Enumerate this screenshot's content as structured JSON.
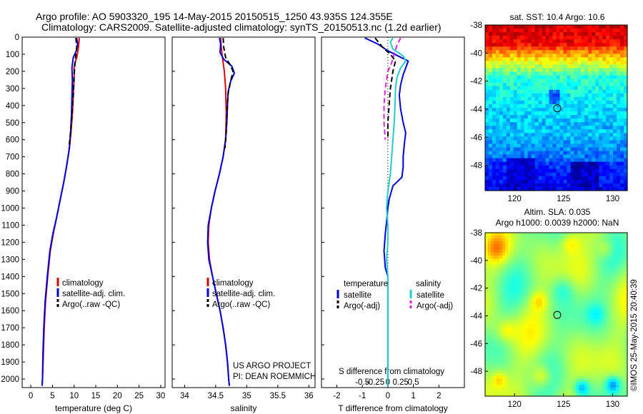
{
  "title_line1": "Argo profile: AO 5903320_195 14-May-2015 20150515_1250 43.935S 124.355E",
  "title_line2": "Climatology: CARS2009. Satellite-adjusted climatology: synTS_20150513.nc (1.2d earlier)",
  "project_note": [
    "US ARGO PROJECT",
    "PI: DEAN ROEMMICH"
  ],
  "watermark": "©IMOS 25-May-2015 20:40:39",
  "colors": {
    "climatology": "#dd0000",
    "satellite": "#0000dd",
    "argo": "#000000",
    "sal_satellite": "#22cccc",
    "sal_argo": "#dd22dd"
  },
  "chart_data": [
    {
      "type": "line",
      "id": "temperature",
      "xlabel": "temperature (deg C)",
      "ylabel": "",
      "xlim": [
        -2,
        31
      ],
      "ylim": [
        2050,
        0
      ],
      "xticks": [
        "0",
        "5",
        "10",
        "15",
        "20",
        "25",
        "30"
      ],
      "yticks": [
        "0",
        "100",
        "200",
        "300",
        "400",
        "500",
        "600",
        "700",
        "800",
        "900",
        "1000",
        "1100",
        "1200",
        "1300",
        "1400",
        "1500",
        "1600",
        "1700",
        "1800",
        "1900",
        "2000"
      ],
      "legend": [
        "climatology",
        "satellite-adj. clim.",
        "Argo(..raw -QC)"
      ],
      "series": [
        {
          "name": "climatology",
          "color": "#dd0000",
          "points": [
            [
              11.2,
              5
            ],
            [
              11.0,
              60
            ],
            [
              10.6,
              120
            ],
            [
              10.2,
              150
            ],
            [
              10.0,
              180
            ],
            [
              10.0,
              250
            ],
            [
              9.8,
              350
            ],
            [
              9.6,
              450
            ],
            [
              9.3,
              550
            ],
            [
              8.9,
              650
            ],
            [
              8.3,
              750
            ],
            [
              7.6,
              850
            ],
            [
              6.8,
              950
            ],
            [
              6.0,
              1050
            ],
            [
              5.2,
              1150
            ],
            [
              4.5,
              1250
            ],
            [
              3.9,
              1400
            ],
            [
              3.4,
              1550
            ],
            [
              3.1,
              1700
            ],
            [
              2.9,
              1850
            ],
            [
              2.7,
              2000
            ],
            [
              2.6,
              2040
            ]
          ]
        },
        {
          "name": "satellite-adj. clim.",
          "color": "#0000dd",
          "points": [
            [
              10.6,
              5
            ],
            [
              10.8,
              40
            ],
            [
              10.5,
              80
            ],
            [
              9.8,
              120
            ],
            [
              9.5,
              180
            ],
            [
              9.6,
              250
            ],
            [
              9.5,
              350
            ],
            [
              9.4,
              450
            ],
            [
              9.2,
              550
            ],
            [
              8.9,
              650
            ],
            [
              8.3,
              750
            ],
            [
              7.6,
              850
            ],
            [
              6.8,
              950
            ],
            [
              6.0,
              1050
            ],
            [
              5.1,
              1150
            ],
            [
              4.4,
              1250
            ],
            [
              3.8,
              1400
            ],
            [
              3.3,
              1550
            ],
            [
              3.0,
              1700
            ],
            [
              2.8,
              1850
            ],
            [
              2.7,
              2000
            ],
            [
              2.6,
              2040
            ]
          ]
        },
        {
          "name": "Argo(..raw -QC)",
          "color": "#000000",
          "points": [
            [
              10.4,
              5
            ],
            [
              10.6,
              60
            ],
            [
              10.4,
              100
            ],
            [
              10.2,
              160
            ],
            [
              10.0,
              220
            ],
            [
              9.8,
              350
            ],
            [
              9.5,
              450
            ],
            [
              9.2,
              550
            ],
            [
              8.8,
              650
            ]
          ]
        }
      ]
    },
    {
      "type": "line",
      "id": "salinity",
      "xlabel": "salinity",
      "ylabel": "",
      "xlim": [
        33.8,
        36.1
      ],
      "ylim": [
        2050,
        0
      ],
      "xticks": [
        "34",
        "34.5",
        "35",
        "35.5",
        "36"
      ],
      "legend": [
        "climatology",
        "satellite-adj. clim.",
        "Argo(..raw -QC)"
      ],
      "series": [
        {
          "name": "climatology",
          "color": "#dd0000",
          "points": [
            [
              34.58,
              5
            ],
            [
              34.59,
              60
            ],
            [
              34.61,
              120
            ],
            [
              34.64,
              200
            ],
            [
              34.66,
              300
            ],
            [
              34.67,
              450
            ],
            [
              34.66,
              600
            ],
            [
              34.62,
              700
            ],
            [
              34.56,
              800
            ],
            [
              34.49,
              900
            ],
            [
              34.43,
              1000
            ],
            [
              34.39,
              1100
            ],
            [
              34.38,
              1200
            ],
            [
              34.4,
              1300
            ],
            [
              34.45,
              1400
            ],
            [
              34.51,
              1500
            ],
            [
              34.57,
              1600
            ],
            [
              34.62,
              1700
            ],
            [
              34.66,
              1800
            ],
            [
              34.69,
              1900
            ],
            [
              34.71,
              2000
            ],
            [
              34.72,
              2040
            ]
          ]
        },
        {
          "name": "satellite-adj. clim.",
          "color": "#0000dd",
          "points": [
            [
              34.56,
              5
            ],
            [
              34.58,
              40
            ],
            [
              34.57,
              90
            ],
            [
              34.63,
              130
            ],
            [
              34.76,
              170
            ],
            [
              34.8,
              210
            ],
            [
              34.74,
              260
            ],
            [
              34.7,
              320
            ],
            [
              34.69,
              400
            ],
            [
              34.68,
              500
            ],
            [
              34.66,
              600
            ],
            [
              34.62,
              700
            ],
            [
              34.56,
              800
            ],
            [
              34.49,
              900
            ],
            [
              34.43,
              1000
            ],
            [
              34.38,
              1100
            ],
            [
              34.37,
              1200
            ],
            [
              34.39,
              1300
            ],
            [
              34.45,
              1400
            ],
            [
              34.51,
              1500
            ],
            [
              34.57,
              1600
            ],
            [
              34.62,
              1700
            ],
            [
              34.66,
              1800
            ],
            [
              34.69,
              1900
            ],
            [
              34.71,
              2000
            ],
            [
              34.72,
              2040
            ]
          ]
        },
        {
          "name": "Argo(..raw -QC)",
          "color": "#000000",
          "points": [
            [
              34.62,
              5
            ],
            [
              34.63,
              60
            ],
            [
              34.66,
              120
            ],
            [
              34.73,
              160
            ],
            [
              34.78,
              200
            ],
            [
              34.74,
              260
            ],
            [
              34.7,
              330
            ],
            [
              34.68,
              450
            ],
            [
              34.67,
              550
            ],
            [
              34.65,
              650
            ]
          ]
        }
      ]
    },
    {
      "type": "line",
      "id": "difference",
      "xlabel": "T difference from climatology",
      "xlabel_top": "S difference from climatology",
      "xlim": [
        -2.6,
        3.0
      ],
      "ylim": [
        2050,
        0
      ],
      "xticks": [
        "-2",
        "-1",
        "0",
        "1",
        "2"
      ],
      "xticks_sal": [
        "-0.5",
        "-0.25",
        "0",
        "0.25",
        "0.5"
      ],
      "legend_headers": [
        "temperature",
        "salinity"
      ],
      "legend": [
        "satellite",
        "Argo(-adj)",
        "satellite",
        "Argo(-adj)"
      ],
      "series": [
        {
          "name": "satellite",
          "group": "temperature",
          "color": "#0000dd",
          "points": [
            [
              -0.9,
              5
            ],
            [
              -0.4,
              40
            ],
            [
              0.0,
              80
            ],
            [
              0.4,
              110
            ],
            [
              0.8,
              140
            ],
            [
              0.7,
              180
            ],
            [
              0.6,
              220
            ],
            [
              0.5,
              280
            ],
            [
              0.45,
              340
            ],
            [
              0.5,
              420
            ],
            [
              0.6,
              500
            ],
            [
              0.7,
              560
            ],
            [
              0.65,
              620
            ],
            [
              0.6,
              700
            ],
            [
              0.6,
              760
            ],
            [
              0.55,
              820
            ],
            [
              0.2,
              870
            ],
            [
              0.05,
              950
            ],
            [
              0,
              1000
            ],
            [
              -0.05,
              1080
            ],
            [
              -0.1,
              1150
            ],
            [
              -0.15,
              1250
            ],
            [
              -0.1,
              1350
            ],
            [
              0,
              1400
            ],
            [
              0,
              2040
            ]
          ]
        },
        {
          "name": "Argo(-adj)",
          "group": "temperature",
          "color": "#000000",
          "points": [
            [
              -0.5,
              5
            ],
            [
              -0.2,
              60
            ],
            [
              0.1,
              100
            ],
            [
              0.3,
              140
            ],
            [
              0.2,
              200
            ],
            [
              0.1,
              300
            ],
            [
              0.05,
              400
            ],
            [
              0.0,
              500
            ],
            [
              0.0,
              600
            ]
          ]
        },
        {
          "name": "satellite",
          "group": "salinity",
          "color": "#22cccc",
          "points": [
            [
              0.2,
              5
            ],
            [
              0.1,
              30
            ],
            [
              0.2,
              70
            ],
            [
              0.6,
              110
            ],
            [
              0.7,
              140
            ],
            [
              0.5,
              180
            ],
            [
              0.35,
              240
            ],
            [
              0.3,
              300
            ],
            [
              0.28,
              400
            ],
            [
              0.25,
              500
            ],
            [
              0.2,
              600
            ],
            [
              0.15,
              700
            ],
            [
              0.1,
              800
            ],
            [
              0.0,
              900
            ],
            [
              -0.05,
              1000
            ],
            [
              0.0,
              1100
            ],
            [
              0.0,
              1200
            ],
            [
              -0.05,
              1300
            ],
            [
              0.0,
              1400
            ],
            [
              0,
              2040
            ]
          ]
        },
        {
          "name": "Argo(-adj)",
          "group": "salinity",
          "color": "#dd22dd",
          "points": [
            [
              0.5,
              5
            ],
            [
              0.35,
              50
            ],
            [
              0.25,
              100
            ],
            [
              0.15,
              150
            ],
            [
              0.0,
              200
            ],
            [
              -0.1,
              300
            ],
            [
              -0.15,
              400
            ],
            [
              -0.15,
              500
            ],
            [
              -0.1,
              600
            ]
          ]
        }
      ]
    },
    {
      "type": "heatmap",
      "id": "sst_map",
      "title": "sat. SST: 10.4  Argo: 10.6",
      "xlim": [
        117,
        131.5
      ],
      "ylim": [
        -49.8,
        -38
      ],
      "xticks": [
        "120",
        "125",
        "130"
      ],
      "yticks": [
        "-38",
        "-40",
        "-42",
        "-44",
        "-46",
        "-48"
      ],
      "marker": [
        124.355,
        -43.935
      ]
    },
    {
      "type": "heatmap",
      "id": "sla_map",
      "title": [
        "Altim. SLA: 0.035",
        "Argo h1000: 0.0039  h2000: NaN"
      ],
      "xlim": [
        117,
        131.5
      ],
      "ylim": [
        -49.8,
        -38
      ],
      "xticks": [
        "120",
        "125",
        "130"
      ],
      "yticks": [
        "-38",
        "-40",
        "-42",
        "-44",
        "-46",
        "-48"
      ],
      "marker": [
        124.355,
        -43.935
      ]
    }
  ]
}
